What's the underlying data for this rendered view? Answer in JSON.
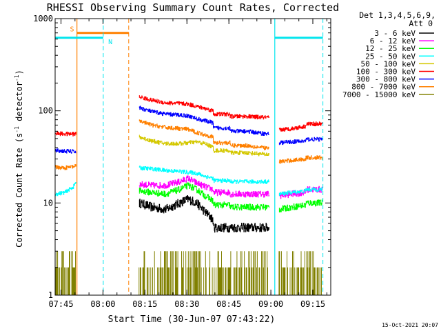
{
  "chart_data": {
    "type": "line",
    "title": "RHESSI Observing Summary Count Rates, Corrected",
    "xlabel": "Start Time (30-Jun-07 07:43:22)",
    "ylabel_main": "Corrected Count Rate (s",
    "ylabel_sup1": "-1",
    "ylabel_mid": " detector",
    "ylabel_sup2": "-1",
    "ylabel_end": ")",
    "yscale": "log",
    "ylim": [
      1,
      1000
    ],
    "xlim_minutes": [
      -0.5,
      98
    ],
    "x_tick_labels": [
      "07:45",
      "08:00",
      "08:15",
      "08:30",
      "08:45",
      "09:00",
      "09:15"
    ],
    "x_tick_minutes": [
      1.6,
      16.6,
      31.6,
      46.6,
      61.6,
      76.6,
      91.6
    ],
    "y_tick_labels": [
      "1",
      "10",
      "100",
      "1000"
    ],
    "y_tick_values": [
      1,
      10,
      100,
      1000
    ],
    "timestamp": "15-Oct-2021 20:07",
    "legend": {
      "header": [
        "Det 1,3,4,5,6,9,",
        "Att 0"
      ],
      "entries": [
        {
          "label": "3 - 6 keV",
          "color": "#000000"
        },
        {
          "label": "6 - 12 keV",
          "color": "#ff00ff"
        },
        {
          "label": "12 - 25 keV",
          "color": "#00ff00"
        },
        {
          "label": "25 - 50 keV",
          "color": "#00ffff"
        },
        {
          "label": "50 - 100 keV",
          "color": "#d4c800"
        },
        {
          "label": "100 - 300 keV",
          "color": "#ff0000"
        },
        {
          "label": "300 - 800 keV",
          "color": "#0000ff"
        },
        {
          "label": "800 - 7000 keV",
          "color": "#ff8000"
        },
        {
          "label": "7000 - 15000 keV",
          "color": "#808000"
        }
      ]
    },
    "flags": {
      "saa_label": "S",
      "night_label": "N",
      "saa_color": "#ff8000",
      "night_color": "#00e5ee"
    },
    "intervals": [
      [
        -0.5,
        7.0
      ],
      [
        29.5,
        76.0
      ],
      [
        79.5,
        95.0
      ]
    ],
    "series": [
      {
        "name": "3 - 6 keV",
        "color": "#000000",
        "x": [
          29.5,
          34,
          39,
          44,
          47,
          50,
          53,
          56,
          62,
          68,
          73,
          76
        ],
        "y": [
          10,
          9,
          8.5,
          10,
          11,
          10,
          8,
          6.5,
          5.4,
          5.4,
          5.4,
          5.4
        ]
      },
      {
        "name": "6 - 12 keV",
        "color": "#ff00ff",
        "x": [
          29.5,
          34,
          39,
          44,
          47,
          50,
          53,
          56,
          62,
          68,
          73,
          76,
          79.5,
          84,
          89,
          95
        ],
        "y": [
          16,
          15.5,
          15.5,
          17,
          18.5,
          16.5,
          15,
          14,
          13,
          12.5,
          12.5,
          12.5,
          12,
          12.5,
          13,
          14
        ]
      },
      {
        "name": "12 - 25 keV",
        "color": "#00ff00",
        "x": [
          29.5,
          34,
          39,
          44,
          47,
          50,
          53,
          56,
          62,
          68,
          73,
          76,
          79.5,
          84,
          89,
          95
        ],
        "y": [
          13.5,
          13,
          12.5,
          14,
          15.5,
          14,
          12,
          10.5,
          9.5,
          9,
          9,
          9,
          8.5,
          9,
          9.5,
          10
        ]
      },
      {
        "name": "25 - 50 keV",
        "color": "#00ffff",
        "x": [
          -0.5,
          3,
          6,
          7,
          29.5,
          34,
          39,
          44,
          47,
          50,
          53,
          56,
          62,
          68,
          73,
          76,
          79.5,
          84,
          89,
          95
        ],
        "y": [
          12.5,
          13,
          15,
          17,
          24,
          23.5,
          22.5,
          22,
          21.5,
          21,
          19.5,
          18.5,
          17.5,
          17,
          17,
          17,
          12.5,
          13,
          13.5,
          14
        ]
      },
      {
        "name": "50 - 100 keV",
        "color": "#d4c800",
        "x": [
          29.5,
          34,
          39,
          44,
          47,
          50,
          53,
          56,
          62,
          68,
          73,
          76
        ],
        "y": [
          52,
          47,
          44,
          44,
          45,
          46,
          44,
          40,
          37,
          35,
          34,
          33.5
        ]
      },
      {
        "name": "100 - 300 keV",
        "color": "#ff0000",
        "x": [
          -0.5,
          3,
          7,
          29.5,
          34,
          39,
          44,
          47,
          50,
          53,
          56,
          62,
          68,
          73,
          76,
          79.5,
          84,
          89,
          95
        ],
        "y": [
          57,
          56,
          56,
          142,
          130,
          122,
          120,
          118,
          112,
          106,
          100,
          92,
          87,
          85,
          84,
          62,
          64,
          68,
          72
        ]
      },
      {
        "name": "300 - 800 keV",
        "color": "#0000ff",
        "x": [
          -0.5,
          3,
          7,
          29.5,
          34,
          39,
          44,
          47,
          50,
          53,
          56,
          62,
          68,
          73,
          76,
          79.5,
          84,
          89,
          95
        ],
        "y": [
          37,
          36.5,
          36,
          108,
          98,
          92,
          90,
          88,
          82,
          78,
          74,
          65,
          60,
          57,
          56,
          45,
          46,
          47,
          49
        ]
      },
      {
        "name": "800 - 7000 keV",
        "color": "#ff8000",
        "x": [
          -0.5,
          3,
          7,
          29.5,
          34,
          39,
          44,
          47,
          50,
          53,
          56,
          62,
          68,
          73,
          76,
          79.5,
          84,
          89,
          95
        ],
        "y": [
          24.5,
          24,
          25,
          78,
          70,
          66,
          64,
          63,
          58,
          55,
          52,
          45,
          42,
          40,
          39,
          28,
          29,
          30,
          31
        ]
      },
      {
        "name": "7000 - 15000 keV",
        "color": "#808000",
        "x": [
          -0.5,
          7,
          29.5,
          76,
          79.5,
          95
        ],
        "y": [
          1,
          1,
          1,
          1,
          1,
          1
        ]
      }
    ]
  }
}
